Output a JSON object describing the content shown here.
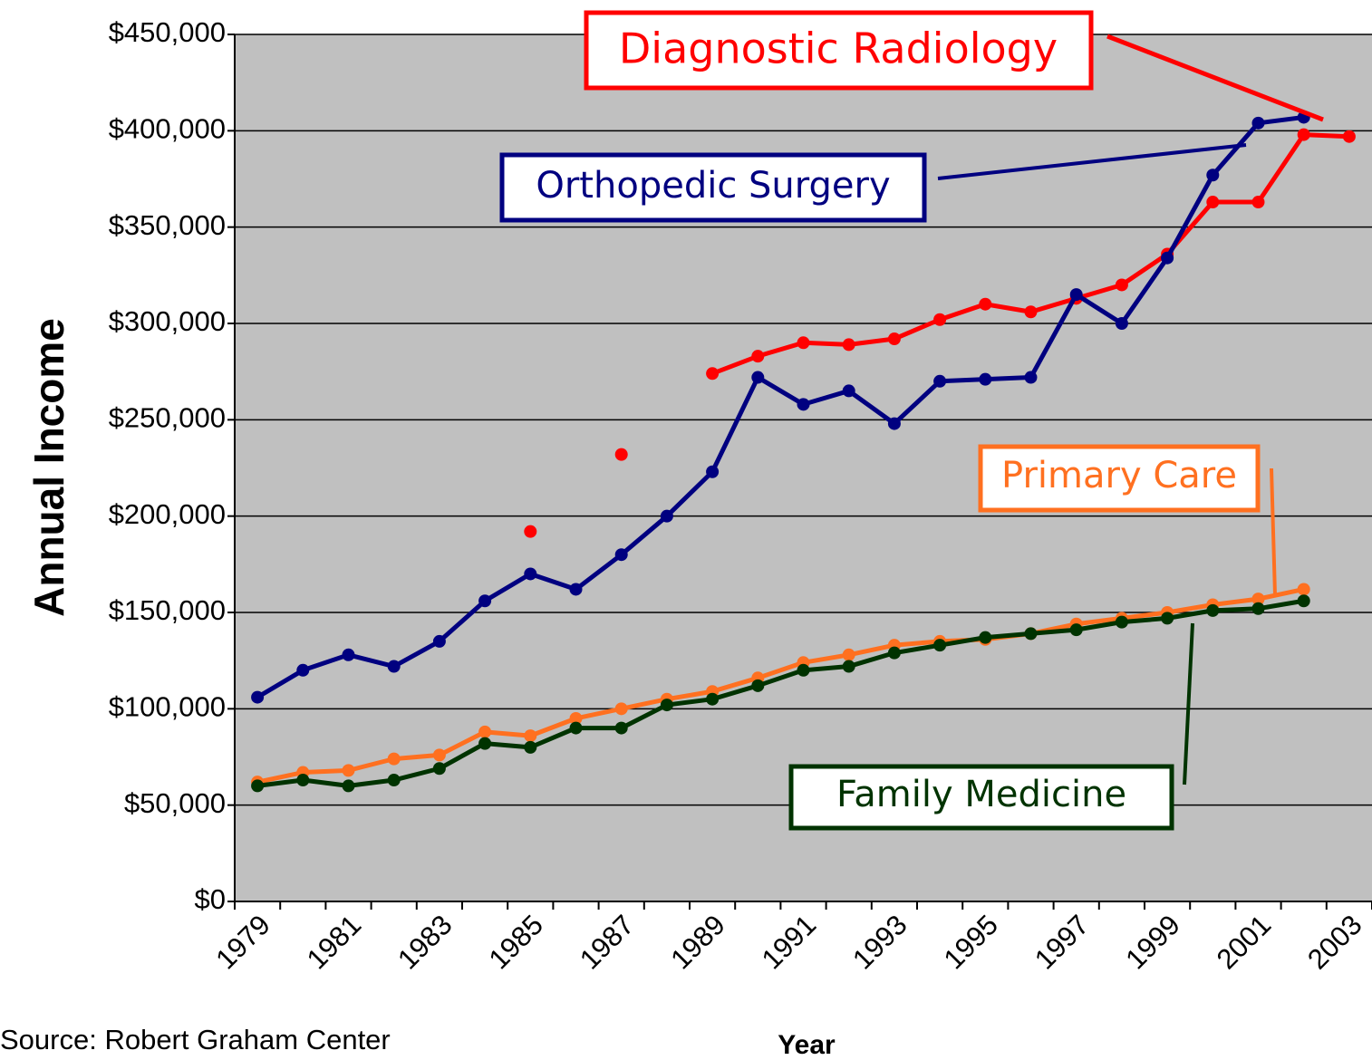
{
  "chart_data": {
    "type": "line",
    "y_label": "Annual Income",
    "x_label": "Year",
    "source": "Source: Robert Graham Center",
    "categories": [
      "1979",
      null,
      "1981",
      null,
      "1983",
      null,
      "1985",
      null,
      "1987",
      null,
      "1989",
      null,
      "1991",
      null,
      "1993",
      null,
      "1995",
      null,
      "1997",
      null,
      "1999",
      null,
      "2001",
      null,
      "2003"
    ],
    "ylim": [
      0,
      450000
    ],
    "yticks": [
      {
        "value": 0,
        "label": "$0"
      },
      {
        "value": 50000,
        "label": "$50,000"
      },
      {
        "value": 100000,
        "label": "$100,000"
      },
      {
        "value": 150000,
        "label": "$150,000"
      },
      {
        "value": 200000,
        "label": "$200,000"
      },
      {
        "value": 250000,
        "label": "$250,000"
      },
      {
        "value": 300000,
        "label": "$300,000"
      },
      {
        "value": 350000,
        "label": "$350,000"
      },
      {
        "value": 400000,
        "label": "$400,000"
      },
      {
        "value": 450000,
        "label": "$450,000"
      }
    ],
    "grid": true,
    "series": [
      {
        "name": "Diagnostic Radiology",
        "color": "#ff0000",
        "values": [
          null,
          null,
          null,
          null,
          null,
          null,
          192000,
          null,
          232000,
          null,
          274000,
          283000,
          290000,
          289000,
          292000,
          302000,
          310000,
          306000,
          313000,
          320000,
          336000,
          363000,
          363000,
          398000,
          397000
        ]
      },
      {
        "name": "Orthopedic Surgery",
        "color": "#000080",
        "values": [
          106000,
          120000,
          128000,
          122000,
          135000,
          156000,
          170000,
          162000,
          180000,
          200000,
          223000,
          272000,
          258000,
          265000,
          248000,
          270000,
          271000,
          272000,
          315000,
          300000,
          334000,
          377000,
          404000,
          407000,
          null
        ]
      },
      {
        "name": "Primary Care",
        "color": "#ff7020",
        "values": [
          62000,
          67000,
          68000,
          74000,
          76000,
          88000,
          86000,
          95000,
          100000,
          105000,
          109000,
          116000,
          124000,
          128000,
          133000,
          135000,
          136000,
          139000,
          144000,
          147000,
          150000,
          154000,
          157000,
          162000,
          null
        ]
      },
      {
        "name": "Family Medicine",
        "color": "#003300",
        "values": [
          60000,
          63000,
          60000,
          63000,
          69000,
          82000,
          80000,
          90000,
          90000,
          102000,
          105000,
          112000,
          120000,
          122000,
          129000,
          133000,
          137000,
          139000,
          141000,
          145000,
          147000,
          151000,
          152000,
          156000,
          null
        ]
      }
    ]
  }
}
